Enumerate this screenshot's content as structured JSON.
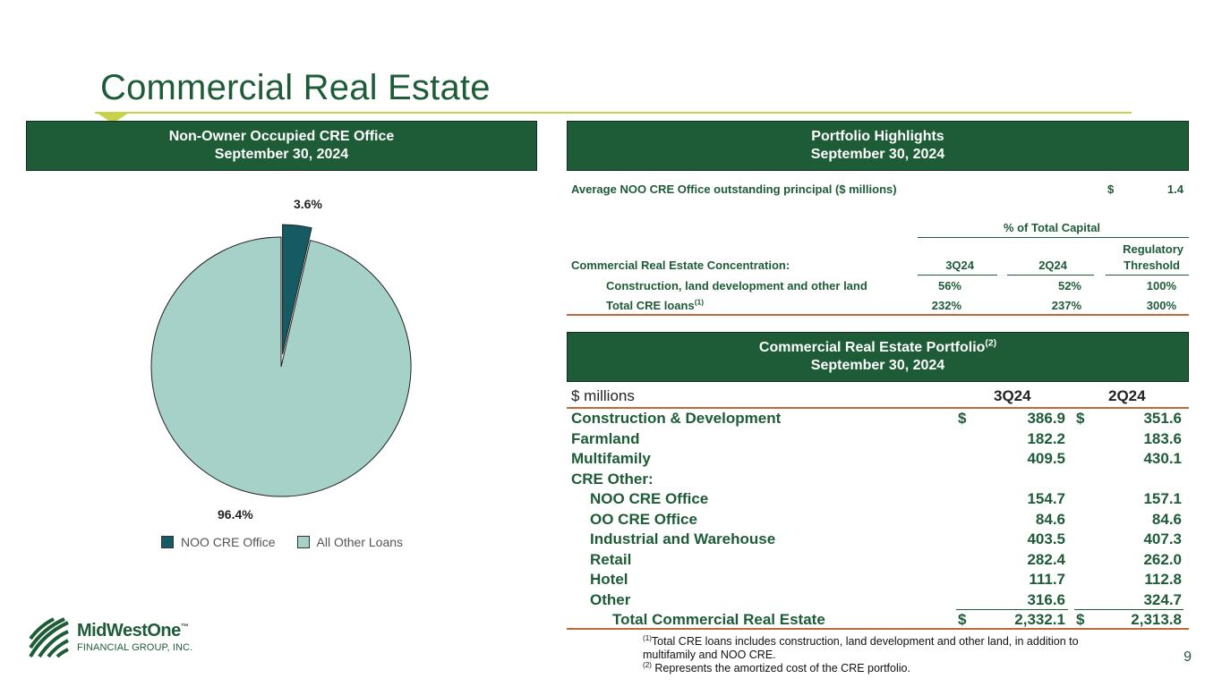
{
  "title": "Commercial Real Estate",
  "page_number": "9",
  "left_panel": {
    "header_line1": "Non-Owner Occupied CRE Office",
    "header_line2": "September 30, 2024",
    "pie": {
      "slices": [
        {
          "name": "NOO CRE Office",
          "percent_label": "3.6%",
          "value": 3.6,
          "color": "#165a64"
        },
        {
          "name": "All Other Loans",
          "percent_label": "96.4%",
          "value": 96.4,
          "color": "#a6d1c9"
        }
      ]
    },
    "legend": [
      "NOO CRE Office",
      "All Other Loans"
    ]
  },
  "highlights": {
    "header_line1": "Portfolio Highlights",
    "header_line2": "September 30, 2024",
    "avg_label": "Average NOO CRE Office outstanding principal ($ millions)",
    "avg_currency": "$",
    "avg_value": "1.4",
    "pct_header": "% of Total Capital",
    "concentration_label": "Commercial Real Estate Concentration:",
    "col_3q": "3Q24",
    "col_2q": "2Q24",
    "col_reg1": "Regulatory",
    "col_reg2": "Threshold",
    "rows": [
      {
        "label": "Construction, land development and other land",
        "sup": "",
        "q3": "56%",
        "q2": "52%",
        "reg": "100%"
      },
      {
        "label": "Total CRE loans",
        "sup": "(1)",
        "q3": "232%",
        "q2": "237%",
        "reg": "300%"
      }
    ]
  },
  "portfolio": {
    "header_line1": "Commercial Real Estate Portfolio",
    "header_sup": "(2)",
    "header_line2": "September 30, 2024",
    "units": "$ millions",
    "col_3q": "3Q24",
    "col_2q": "2Q24",
    "rows": [
      {
        "label": "Construction & Development",
        "indent": 0,
        "cur3": "$",
        "q3": "386.9",
        "cur2": "$",
        "q2": "351.6"
      },
      {
        "label": "Farmland",
        "indent": 0,
        "cur3": "",
        "q3": "182.2",
        "cur2": "",
        "q2": "183.6"
      },
      {
        "label": "Multifamily",
        "indent": 0,
        "cur3": "",
        "q3": "409.5",
        "cur2": "",
        "q2": "430.1"
      },
      {
        "label": "CRE Other:",
        "indent": 0,
        "cur3": "",
        "q3": "",
        "cur2": "",
        "q2": ""
      },
      {
        "label": "NOO CRE Office",
        "indent": 1,
        "cur3": "",
        "q3": "154.7",
        "cur2": "",
        "q2": "157.1"
      },
      {
        "label": "OO CRE Office",
        "indent": 1,
        "cur3": "",
        "q3": "84.6",
        "cur2": "",
        "q2": "84.6"
      },
      {
        "label": "Industrial and Warehouse",
        "indent": 1,
        "cur3": "",
        "q3": "403.5",
        "cur2": "",
        "q2": "407.3"
      },
      {
        "label": "Retail",
        "indent": 1,
        "cur3": "",
        "q3": "282.4",
        "cur2": "",
        "q2": "262.0"
      },
      {
        "label": "Hotel",
        "indent": 1,
        "cur3": "",
        "q3": "111.7",
        "cur2": "",
        "q2": "112.8"
      },
      {
        "label": "Other",
        "indent": 1,
        "cur3": "",
        "q3": "316.6",
        "cur2": "",
        "q2": "324.7"
      },
      {
        "label": "Total Commercial Real Estate",
        "indent": 2,
        "cur3": "$",
        "q3": "2,332.1",
        "cur2": "$",
        "q2": "2,313.8"
      }
    ]
  },
  "footnotes": {
    "fn1_mark": "(1)",
    "fn1_text": "Total CRE loans includes construction, land development and other land, in addition to multifamily and NOO CRE.",
    "fn2_mark": "(2)",
    "fn2_text": " Represents the amortized cost of the CRE portfolio."
  },
  "logo": {
    "name": "MidWestOne",
    "tm": "™",
    "subtitle": "FINANCIAL GROUP, INC."
  }
}
